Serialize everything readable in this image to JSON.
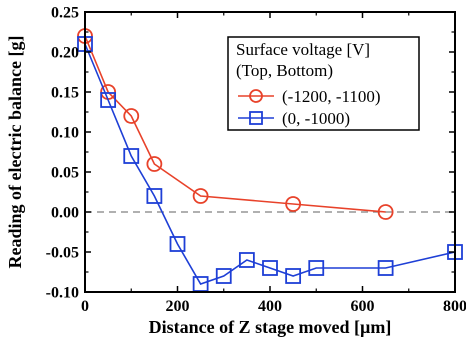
{
  "chart_data": {
    "type": "line",
    "xlabel": "Distance of Z stage moved [µm]",
    "ylabel": "Reading of electric balance [g]",
    "xlim": [
      0,
      800
    ],
    "ylim": [
      -0.1,
      0.25
    ],
    "x_ticks": [
      0,
      200,
      400,
      600,
      800
    ],
    "x_tick_labels": [
      "0",
      "200",
      "400",
      "600",
      "800"
    ],
    "y_ticks": [
      -0.1,
      -0.05,
      0.0,
      0.05,
      0.1,
      0.15,
      0.2,
      0.25
    ],
    "y_tick_labels": [
      "-0.10",
      "-0.05",
      "0.00",
      "0.05",
      "0.10",
      "0.15",
      "0.20",
      "0.25"
    ],
    "grid": false,
    "reference_line": {
      "y": 0.0,
      "style": "dashed",
      "color": "#808080"
    },
    "legend": {
      "placement": "top-right",
      "title_lines": [
        "Surface voltage [V]",
        "(Top, Bottom)"
      ]
    },
    "series": [
      {
        "name": "(-1200, -1100)",
        "color": "#e8422a",
        "marker": "circle",
        "x": [
          0,
          50,
          100,
          150,
          250,
          450,
          650
        ],
        "y": [
          0.22,
          0.15,
          0.12,
          0.06,
          0.02,
          0.01,
          0.0
        ]
      },
      {
        "name": "(0, -1000)",
        "color": "#1e3fd6",
        "marker": "square",
        "x": [
          0,
          50,
          100,
          150,
          200,
          250,
          300,
          350,
          400,
          450,
          500,
          650,
          800
        ],
        "y": [
          0.21,
          0.14,
          0.07,
          0.02,
          -0.04,
          -0.09,
          -0.08,
          -0.06,
          -0.07,
          -0.08,
          -0.07,
          -0.07,
          -0.05
        ]
      }
    ]
  }
}
